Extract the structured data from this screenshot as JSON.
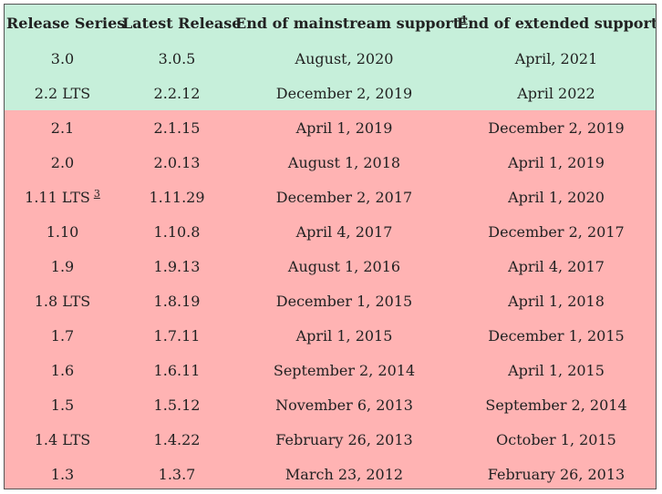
{
  "headers": [
    {
      "label": "Release Series",
      "note": ""
    },
    {
      "label": "Latest Release",
      "note": ""
    },
    {
      "label": "End of mainstream support",
      "note": "1"
    },
    {
      "label": "End of extended support",
      "note": "2"
    }
  ],
  "rows": [
    {
      "series": "3.0",
      "note": "",
      "latest": "3.0.5",
      "mainstream": "August, 2020",
      "extended": "April, 2021",
      "status": "supported"
    },
    {
      "series": "2.2 LTS",
      "note": "",
      "latest": "2.2.12",
      "mainstream": "December 2, 2019",
      "extended": "April 2022",
      "status": "supported"
    },
    {
      "series": "2.1",
      "note": "",
      "latest": "2.1.15",
      "mainstream": "April 1, 2019",
      "extended": "December 2, 2019",
      "status": "unsupported"
    },
    {
      "series": "2.0",
      "note": "",
      "latest": "2.0.13",
      "mainstream": "August 1, 2018",
      "extended": "April 1, 2019",
      "status": "unsupported"
    },
    {
      "series": "1.11 LTS",
      "note": "3",
      "latest": "1.11.29",
      "mainstream": "December 2, 2017",
      "extended": "April 1, 2020",
      "status": "unsupported"
    },
    {
      "series": "1.10",
      "note": "",
      "latest": "1.10.8",
      "mainstream": "April 4, 2017",
      "extended": "December 2, 2017",
      "status": "unsupported"
    },
    {
      "series": "1.9",
      "note": "",
      "latest": "1.9.13",
      "mainstream": "August 1, 2016",
      "extended": "April 4, 2017",
      "status": "unsupported"
    },
    {
      "series": "1.8 LTS",
      "note": "",
      "latest": "1.8.19",
      "mainstream": "December 1, 2015",
      "extended": "April 1, 2018",
      "status": "unsupported"
    },
    {
      "series": "1.7",
      "note": "",
      "latest": "1.7.11",
      "mainstream": "April 1, 2015",
      "extended": "December 1, 2015",
      "status": "unsupported"
    },
    {
      "series": "1.6",
      "note": "",
      "latest": "1.6.11",
      "mainstream": "September 2, 2014",
      "extended": "April 1, 2015",
      "status": "unsupported"
    },
    {
      "series": "1.5",
      "note": "",
      "latest": "1.5.12",
      "mainstream": "November 6, 2013",
      "extended": "September 2, 2014",
      "status": "unsupported"
    },
    {
      "series": "1.4 LTS",
      "note": "",
      "latest": "1.4.22",
      "mainstream": "February 26, 2013",
      "extended": "October 1, 2015",
      "status": "unsupported"
    },
    {
      "series": "1.3",
      "note": "",
      "latest": "1.3.7",
      "mainstream": "March 23, 2012",
      "extended": "February 26, 2013",
      "status": "unsupported"
    }
  ],
  "colors": {
    "supported": "#c6efda",
    "unsupported": "#ffb3b3",
    "text": "#222222",
    "border": "#555555"
  }
}
